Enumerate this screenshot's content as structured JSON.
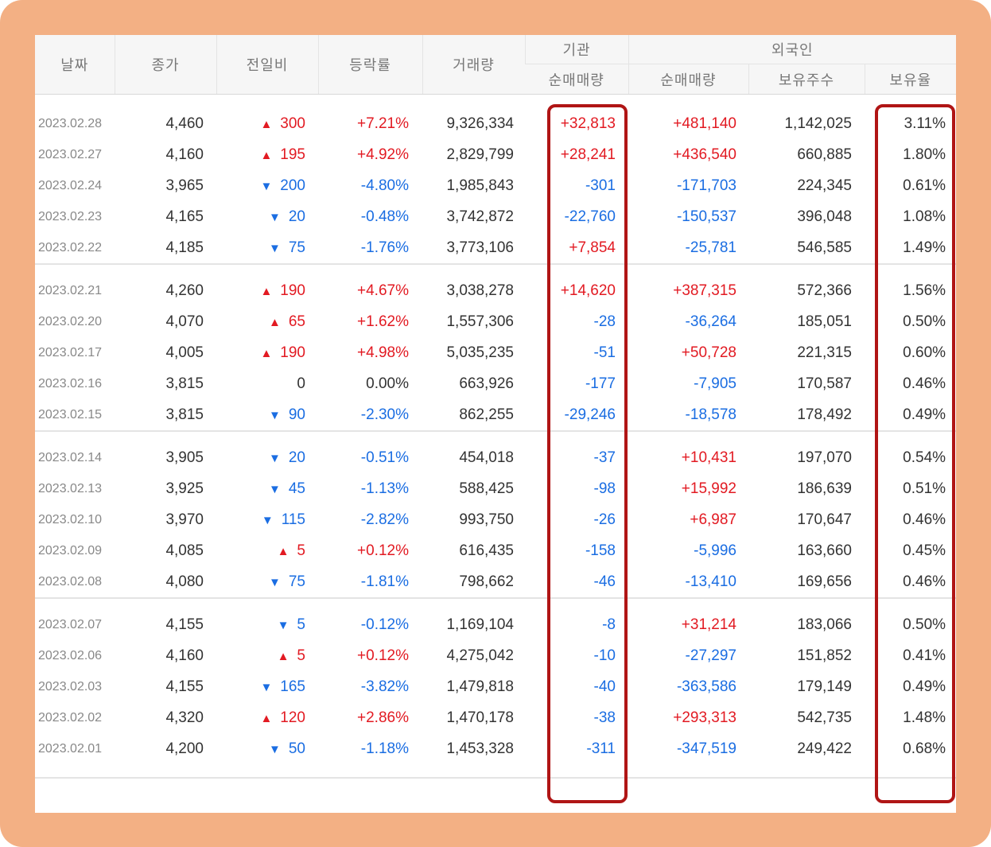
{
  "headers": {
    "date": "날짜",
    "close": "종가",
    "diff": "전일비",
    "rate": "등락률",
    "volume": "거래량",
    "institution": "기관",
    "foreign": "외국인",
    "inst_net": "순매매량",
    "foreign_net": "순매매량",
    "foreign_hold": "보유주수",
    "foreign_ratio": "보유율"
  },
  "colors": {
    "up": "#e21a22",
    "down": "#1a6de2",
    "highlight": "#b01515",
    "frame": "#f3b084"
  },
  "groups": [
    [
      {
        "date": "2023.02.28",
        "close": "4,460",
        "dir": "up",
        "diff": "300",
        "rate": "+7.21%",
        "volume": "9,326,334",
        "inst": "+32,813",
        "fnet": "+481,140",
        "fhold": "1,142,025",
        "fratio": "3.11%"
      },
      {
        "date": "2023.02.27",
        "close": "4,160",
        "dir": "up",
        "diff": "195",
        "rate": "+4.92%",
        "volume": "2,829,799",
        "inst": "+28,241",
        "fnet": "+436,540",
        "fhold": "660,885",
        "fratio": "1.80%"
      },
      {
        "date": "2023.02.24",
        "close": "3,965",
        "dir": "down",
        "diff": "200",
        "rate": "-4.80%",
        "volume": "1,985,843",
        "inst": "-301",
        "fnet": "-171,703",
        "fhold": "224,345",
        "fratio": "0.61%"
      },
      {
        "date": "2023.02.23",
        "close": "4,165",
        "dir": "down",
        "diff": "20",
        "rate": "-0.48%",
        "volume": "3,742,872",
        "inst": "-22,760",
        "fnet": "-150,537",
        "fhold": "396,048",
        "fratio": "1.08%"
      },
      {
        "date": "2023.02.22",
        "close": "4,185",
        "dir": "down",
        "diff": "75",
        "rate": "-1.76%",
        "volume": "3,773,106",
        "inst": "+7,854",
        "fnet": "-25,781",
        "fhold": "546,585",
        "fratio": "1.49%"
      }
    ],
    [
      {
        "date": "2023.02.21",
        "close": "4,260",
        "dir": "up",
        "diff": "190",
        "rate": "+4.67%",
        "volume": "3,038,278",
        "inst": "+14,620",
        "fnet": "+387,315",
        "fhold": "572,366",
        "fratio": "1.56%"
      },
      {
        "date": "2023.02.20",
        "close": "4,070",
        "dir": "up",
        "diff": "65",
        "rate": "+1.62%",
        "volume": "1,557,306",
        "inst": "-28",
        "fnet": "-36,264",
        "fhold": "185,051",
        "fratio": "0.50%"
      },
      {
        "date": "2023.02.17",
        "close": "4,005",
        "dir": "up",
        "diff": "190",
        "rate": "+4.98%",
        "volume": "5,035,235",
        "inst": "-51",
        "fnet": "+50,728",
        "fhold": "221,315",
        "fratio": "0.60%"
      },
      {
        "date": "2023.02.16",
        "close": "3,815",
        "dir": "flat",
        "diff": "0",
        "rate": "0.00%",
        "volume": "663,926",
        "inst": "-177",
        "fnet": "-7,905",
        "fhold": "170,587",
        "fratio": "0.46%"
      },
      {
        "date": "2023.02.15",
        "close": "3,815",
        "dir": "down",
        "diff": "90",
        "rate": "-2.30%",
        "volume": "862,255",
        "inst": "-29,246",
        "fnet": "-18,578",
        "fhold": "178,492",
        "fratio": "0.49%"
      }
    ],
    [
      {
        "date": "2023.02.14",
        "close": "3,905",
        "dir": "down",
        "diff": "20",
        "rate": "-0.51%",
        "volume": "454,018",
        "inst": "-37",
        "fnet": "+10,431",
        "fhold": "197,070",
        "fratio": "0.54%"
      },
      {
        "date": "2023.02.13",
        "close": "3,925",
        "dir": "down",
        "diff": "45",
        "rate": "-1.13%",
        "volume": "588,425",
        "inst": "-98",
        "fnet": "+15,992",
        "fhold": "186,639",
        "fratio": "0.51%"
      },
      {
        "date": "2023.02.10",
        "close": "3,970",
        "dir": "down",
        "diff": "115",
        "rate": "-2.82%",
        "volume": "993,750",
        "inst": "-26",
        "fnet": "+6,987",
        "fhold": "170,647",
        "fratio": "0.46%"
      },
      {
        "date": "2023.02.09",
        "close": "4,085",
        "dir": "up",
        "diff": "5",
        "rate": "+0.12%",
        "volume": "616,435",
        "inst": "-158",
        "fnet": "-5,996",
        "fhold": "163,660",
        "fratio": "0.45%"
      },
      {
        "date": "2023.02.08",
        "close": "4,080",
        "dir": "down",
        "diff": "75",
        "rate": "-1.81%",
        "volume": "798,662",
        "inst": "-46",
        "fnet": "-13,410",
        "fhold": "169,656",
        "fratio": "0.46%"
      }
    ],
    [
      {
        "date": "2023.02.07",
        "close": "4,155",
        "dir": "down",
        "diff": "5",
        "rate": "-0.12%",
        "volume": "1,169,104",
        "inst": "-8",
        "fnet": "+31,214",
        "fhold": "183,066",
        "fratio": "0.50%"
      },
      {
        "date": "2023.02.06",
        "close": "4,160",
        "dir": "up",
        "diff": "5",
        "rate": "+0.12%",
        "volume": "4,275,042",
        "inst": "-10",
        "fnet": "-27,297",
        "fhold": "151,852",
        "fratio": "0.41%"
      },
      {
        "date": "2023.02.03",
        "close": "4,155",
        "dir": "down",
        "diff": "165",
        "rate": "-3.82%",
        "volume": "1,479,818",
        "inst": "-40",
        "fnet": "-363,586",
        "fhold": "179,149",
        "fratio": "0.49%"
      },
      {
        "date": "2023.02.02",
        "close": "4,320",
        "dir": "up",
        "diff": "120",
        "rate": "+2.86%",
        "volume": "1,470,178",
        "inst": "-38",
        "fnet": "+293,313",
        "fhold": "542,735",
        "fratio": "1.48%"
      },
      {
        "date": "2023.02.01",
        "close": "4,200",
        "dir": "down",
        "diff": "50",
        "rate": "-1.18%",
        "volume": "1,453,328",
        "inst": "-311",
        "fnet": "-347,519",
        "fhold": "249,422",
        "fratio": "0.68%"
      }
    ]
  ]
}
